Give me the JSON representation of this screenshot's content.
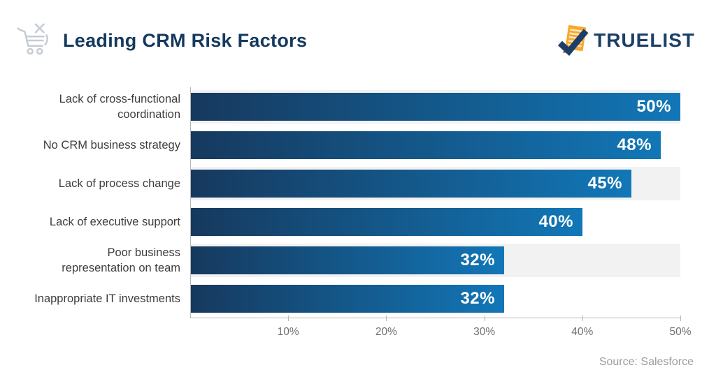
{
  "header": {
    "title": "Leading CRM Risk Factors",
    "brand": "TRUELIST"
  },
  "chart_data": {
    "type": "bar",
    "orientation": "horizontal",
    "title": "Leading CRM Risk Factors",
    "categories": [
      "Lack of cross-functional\ncoordination",
      "No CRM business strategy",
      "Lack of process change",
      "Lack of executive support",
      "Poor business\nrepresentation on team",
      "Inappropriate IT investments"
    ],
    "values": [
      50,
      48,
      45,
      40,
      32,
      32
    ],
    "value_labels": [
      "50%",
      "48%",
      "45%",
      "40%",
      "32%",
      "32%"
    ],
    "xlim": [
      0,
      50
    ],
    "x_ticks": [
      {
        "value": 10,
        "label": "10%"
      },
      {
        "value": 20,
        "label": "20%"
      },
      {
        "value": 30,
        "label": "30%"
      },
      {
        "value": 40,
        "label": "40%"
      },
      {
        "value": 50,
        "label": "50%"
      }
    ],
    "grid": "off",
    "legend": "none",
    "source": "Source: Salesforce",
    "colors": {
      "bar_gradient_start": "#16395e",
      "bar_gradient_end": "#1277b7",
      "track": "#f2f2f2",
      "axis": "#b7b7b7",
      "title_text": "#15395f",
      "category_text": "#3d3d3d",
      "tick_text": "#6f6f6f",
      "value_text": "#ffffff",
      "brand_navy": "#1b3f68",
      "brand_orange": "#f9a72e",
      "source_text": "#9d9d9d"
    }
  },
  "footer": {
    "source": "Source: Salesforce"
  }
}
